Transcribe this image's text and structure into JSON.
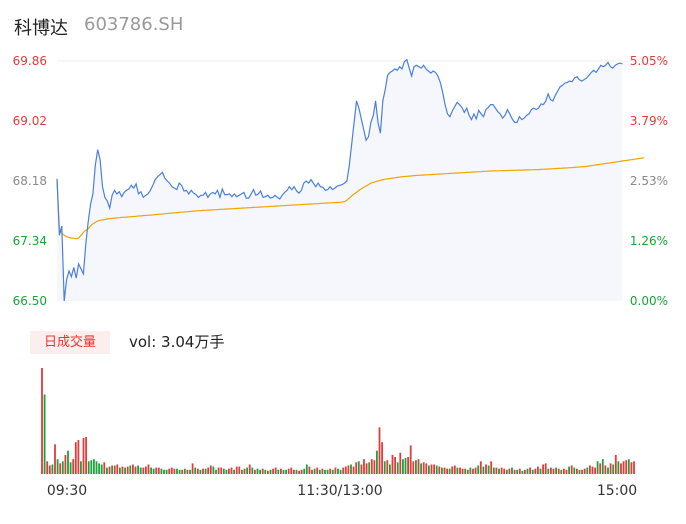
{
  "header": {
    "name": "科博达",
    "code": "603786.SH"
  },
  "volume_panel": {
    "badge": "日成交量",
    "label": "vol: 3.04万手"
  },
  "colors": {
    "price": "#4a7fe0",
    "avg": "#f0a500",
    "up": "#e23b3b",
    "down": "#1aa33a",
    "flat": "#8a8a8a"
  },
  "chart_data": [
    {
      "type": "line",
      "y_left_ticks": [
        "69.86",
        "69.02",
        "68.18",
        "67.34",
        "66.50"
      ],
      "y_right_ticks": [
        "5.05%",
        "3.79%",
        "2.53%",
        "1.26%",
        "0.00%"
      ],
      "x_ticks": [
        "09:30",
        "11:30/13:00",
        "15:00"
      ],
      "ylim": [
        66.5,
        69.86
      ],
      "series": [
        {
          "values": [
            68.21,
            67.42,
            67.55,
            66.5,
            66.8,
            66.92,
            66.84,
            66.97,
            66.82,
            67.02,
            66.95,
            66.88,
            67.3,
            67.6,
            67.85,
            68.0,
            68.4,
            68.62,
            68.48,
            68.1,
            67.95,
            67.9,
            67.8,
            67.98,
            68.05,
            68.0,
            68.03,
            67.96,
            68.02,
            68.05,
            68.07,
            68.12,
            68.08,
            68.14,
            68.0,
            68.03,
            67.95,
            67.98,
            68.0,
            68.05,
            68.12,
            68.2,
            68.24,
            68.27,
            68.3,
            68.22,
            68.18,
            68.15,
            68.1,
            68.08,
            68.06,
            68.15,
            68.12,
            68.04,
            68.05,
            68.0,
            68.05,
            68.01,
            67.99,
            67.95,
            67.98,
            67.98,
            68.02,
            67.95,
            68.0,
            68.02,
            68.0,
            68.05,
            67.95,
            68.07,
            67.99,
            67.99,
            68.0,
            67.96,
            68.0,
            67.96,
            67.98,
            68.0,
            68.02,
            67.94,
            67.94,
            68.0,
            68.06,
            67.98,
            68.0,
            68.04,
            67.95,
            67.96,
            67.98,
            67.94,
            67.95,
            67.98,
            67.95,
            67.93,
            67.98,
            68.02,
            68.05,
            68.1,
            68.06,
            68.1,
            68.04,
            68.01,
            68.05,
            68.15,
            68.18,
            68.15,
            68.2,
            68.15,
            68.1,
            68.15,
            68.1,
            68.09,
            68.05,
            68.06,
            68.1,
            68.06,
            68.08,
            68.11,
            68.12,
            68.13,
            68.15,
            68.18,
            68.4,
            68.7,
            69.0,
            69.3,
            69.2,
            69.05,
            68.9,
            68.75,
            68.8,
            69.0,
            69.1,
            69.3,
            69.0,
            68.85,
            69.3,
            69.46,
            69.66,
            69.7,
            69.72,
            69.75,
            69.73,
            69.78,
            69.75,
            69.85,
            69.88,
            69.76,
            69.65,
            69.78,
            69.8,
            69.78,
            69.76,
            69.8,
            69.75,
            69.72,
            69.69,
            69.72,
            69.7,
            69.65,
            69.56,
            69.42,
            69.25,
            69.12,
            69.08,
            69.16,
            69.22,
            69.28,
            69.25,
            69.21,
            69.14,
            69.2,
            69.1,
            69.04,
            69.12,
            69.05,
            69.17,
            69.12,
            69.08,
            69.18,
            69.21,
            69.25,
            69.25,
            69.2,
            69.15,
            69.12,
            69.06,
            69.1,
            69.18,
            69.12,
            69.05,
            69.0,
            69.0,
            69.08,
            69.04,
            69.06,
            69.1,
            69.12,
            69.18,
            69.2,
            69.18,
            69.2,
            69.26,
            69.25,
            69.3,
            69.4,
            69.32,
            69.3,
            69.38,
            69.44,
            69.5,
            69.52,
            69.55,
            69.56,
            69.58,
            69.57,
            69.62,
            69.64,
            69.6,
            69.58,
            69.6,
            69.62,
            69.66,
            69.7,
            69.73,
            69.7,
            69.75,
            69.8,
            69.78,
            69.8,
            69.84,
            69.78,
            69.76,
            69.8,
            69.82,
            69.83,
            69.82
          ]
        },
        {
          "values": [
            68.21,
            67.5,
            67.45,
            67.42,
            67.4,
            67.39,
            67.38,
            67.38,
            67.37,
            67.38,
            67.42,
            67.46,
            67.49,
            67.51,
            67.55,
            67.58,
            67.6,
            67.62,
            67.63,
            67.635,
            67.64,
            67.65,
            67.653,
            67.656,
            67.66,
            67.663,
            67.666,
            67.67,
            67.672,
            67.675,
            67.678,
            67.68,
            67.683,
            67.686,
            67.69,
            67.692,
            67.695,
            67.698,
            67.7,
            67.703,
            67.706,
            67.709,
            67.712,
            67.715,
            67.718,
            67.722,
            67.725,
            67.728,
            67.731,
            67.734,
            67.737,
            67.74,
            67.743,
            67.746,
            67.749,
            67.752,
            67.755,
            67.758,
            67.761,
            67.764,
            67.766,
            67.768,
            67.77,
            67.772,
            67.774,
            67.776,
            67.778,
            67.78,
            67.782,
            67.784,
            67.786,
            67.788,
            67.79,
            67.792,
            67.794,
            67.796,
            67.798,
            67.8,
            67.802,
            67.804,
            67.806,
            67.808,
            67.81,
            67.812,
            67.814,
            67.816,
            67.818,
            67.82,
            67.822,
            67.824,
            67.826,
            67.828,
            67.83,
            67.832,
            67.834,
            67.836,
            67.838,
            67.84,
            67.842,
            67.844,
            67.846,
            67.848,
            67.85,
            67.852,
            67.854,
            67.856,
            67.858,
            67.86,
            67.862,
            67.864,
            67.866,
            67.868,
            67.87,
            67.872,
            67.874,
            67.876,
            67.878,
            67.88,
            67.882,
            67.884,
            67.89,
            67.91,
            67.94,
            67.97,
            68.0,
            68.02,
            68.05,
            68.07,
            68.09,
            68.11,
            68.13,
            68.15,
            68.16,
            68.17,
            68.18,
            68.19,
            68.2,
            68.205,
            68.21,
            68.215,
            68.22,
            68.225,
            68.23,
            68.235,
            68.24,
            68.243,
            68.246,
            68.249,
            68.252,
            68.255,
            68.258,
            68.26,
            68.262,
            68.264,
            68.266,
            68.268,
            68.27,
            68.272,
            68.274,
            68.276,
            68.278,
            68.28,
            68.282,
            68.284,
            68.286,
            68.288,
            68.29,
            68.292,
            68.294,
            68.296,
            68.298,
            68.3,
            68.302,
            68.304,
            68.306,
            68.308,
            68.31,
            68.312,
            68.314,
            68.316,
            68.318,
            68.32,
            68.321,
            68.322,
            68.323,
            68.324,
            68.325,
            68.326,
            68.327,
            68.328,
            68.329,
            68.33,
            68.331,
            68.332,
            68.333,
            68.334,
            68.335,
            68.336,
            68.337,
            68.338,
            68.339,
            68.34,
            68.342,
            68.344,
            68.346,
            68.348,
            68.35,
            68.352,
            68.354,
            68.356,
            68.358,
            68.36,
            68.362,
            68.364,
            68.366,
            68.368,
            68.37,
            68.373,
            68.376,
            68.379,
            68.382,
            68.385,
            68.39,
            68.395,
            68.4,
            68.405,
            68.41,
            68.415,
            68.42,
            68.425,
            68.43,
            68.435,
            68.44,
            68.445,
            68.45,
            68.455,
            68.46,
            68.465,
            68.47,
            68.475,
            68.48,
            68.485,
            68.49,
            68.495,
            68.5,
            68.505
          ]
        }
      ]
    },
    {
      "type": "bar",
      "series": [
        {
          "values": [
            100,
            75,
            12,
            8,
            9,
            28,
            14,
            10,
            12,
            18,
            22,
            11,
            14,
            30,
            32,
            12,
            34,
            35,
            12,
            13,
            14,
            12,
            10,
            9,
            11,
            6,
            7,
            8,
            8,
            9,
            6,
            7,
            6,
            7,
            8,
            9,
            7,
            8,
            6,
            6,
            7,
            9,
            6,
            5,
            6,
            6,
            5,
            4,
            4,
            5,
            6,
            5,
            5,
            4,
            4,
            5,
            4,
            4,
            10,
            6,
            5,
            4,
            5,
            5,
            6,
            8,
            7,
            4,
            6,
            6,
            5,
            4,
            5,
            6,
            4,
            7,
            7,
            4,
            5,
            6,
            9,
            6,
            4,
            5,
            4,
            5,
            4,
            3,
            4,
            5,
            6,
            4,
            5,
            4,
            4,
            5,
            6,
            4,
            4,
            3,
            4,
            5,
            9,
            7,
            4,
            5,
            6,
            4,
            5,
            4,
            4,
            5,
            4,
            6,
            5,
            4,
            6,
            7,
            8,
            9,
            7,
            11,
            12,
            9,
            14,
            10,
            11,
            14,
            13,
            22,
            44,
            30,
            12,
            13,
            9,
            18,
            16,
            11,
            20,
            14,
            15,
            16,
            27,
            12,
            13,
            14,
            10,
            11,
            10,
            8,
            9,
            9,
            8,
            7,
            6,
            6,
            5,
            5,
            7,
            8,
            6,
            6,
            5,
            5,
            4,
            6,
            5,
            6,
            8,
            12,
            7,
            9,
            8,
            12,
            6,
            6,
            5,
            6,
            5,
            4,
            5,
            6,
            4,
            4,
            5,
            3,
            4,
            5,
            6,
            4,
            5,
            7,
            5,
            9,
            10,
            5,
            6,
            5,
            6,
            5,
            4,
            5,
            4,
            7,
            8,
            6,
            5,
            4,
            4,
            5,
            6,
            8,
            7,
            6,
            12,
            10,
            14,
            8,
            6,
            10,
            9,
            18,
            12,
            10,
            12,
            13,
            14,
            11,
            12
          ],
          "directions": [
            "up",
            "down",
            "up",
            "up",
            "down",
            "up",
            "down",
            "up",
            "down",
            "up",
            "down",
            "down",
            "up",
            "up",
            "up",
            "down",
            "up",
            "up",
            "down",
            "down",
            "down",
            "down",
            "down",
            "down",
            "up",
            "down",
            "up",
            "down",
            "up",
            "up",
            "down",
            "up",
            "down",
            "up",
            "down",
            "up",
            "up",
            "down",
            "down",
            "up",
            "up",
            "up",
            "down",
            "down",
            "up",
            "up",
            "down",
            "down",
            "down",
            "up",
            "up",
            "up",
            "down",
            "down",
            "up",
            "down",
            "up",
            "down",
            "up",
            "down",
            "up",
            "down",
            "up",
            "down",
            "up",
            "up",
            "down",
            "down",
            "up",
            "up",
            "down",
            "down",
            "up",
            "up",
            "down",
            "up",
            "up",
            "down",
            "up",
            "down",
            "up",
            "down",
            "up",
            "down",
            "down",
            "up",
            "down",
            "up",
            "down",
            "up",
            "up",
            "down",
            "up",
            "down",
            "down",
            "up",
            "up",
            "up",
            "down",
            "up",
            "up",
            "down",
            "down",
            "up",
            "up",
            "down",
            "up",
            "down",
            "up",
            "down",
            "down",
            "up",
            "down",
            "up",
            "down",
            "down",
            "up",
            "up",
            "up",
            "down",
            "up",
            "up",
            "down",
            "up",
            "up",
            "up",
            "down",
            "up",
            "up",
            "down",
            "up",
            "up",
            "down",
            "up",
            "down",
            "up",
            "up",
            "down",
            "up",
            "down",
            "down",
            "up",
            "up",
            "up",
            "down",
            "up",
            "down",
            "up",
            "up",
            "down",
            "up",
            "up",
            "down",
            "up",
            "down",
            "up",
            "up",
            "down",
            "up",
            "up",
            "down",
            "up",
            "up",
            "down",
            "up",
            "down",
            "up",
            "up",
            "down",
            "up",
            "down",
            "up",
            "down",
            "up",
            "down",
            "up",
            "down",
            "up",
            "up",
            "down",
            "up",
            "down",
            "up",
            "down",
            "up",
            "down",
            "up",
            "down",
            "up",
            "down",
            "up",
            "up",
            "down",
            "up",
            "up",
            "down",
            "up",
            "up",
            "down",
            "up",
            "down",
            "up",
            "up",
            "down",
            "up",
            "down",
            "up",
            "down",
            "up",
            "up",
            "down",
            "up",
            "up",
            "up",
            "down",
            "up",
            "down",
            "up",
            "down",
            "up",
            "down",
            "up",
            "down",
            "up",
            "up",
            "up",
            "down",
            "up",
            "up",
            "down",
            "up",
            "up",
            "up",
            "up",
            "down",
            "up",
            "down",
            "up",
            "down",
            "up",
            "up",
            "up",
            "up",
            "down",
            "up",
            "up",
            "flat"
          ]
        }
      ]
    }
  ]
}
